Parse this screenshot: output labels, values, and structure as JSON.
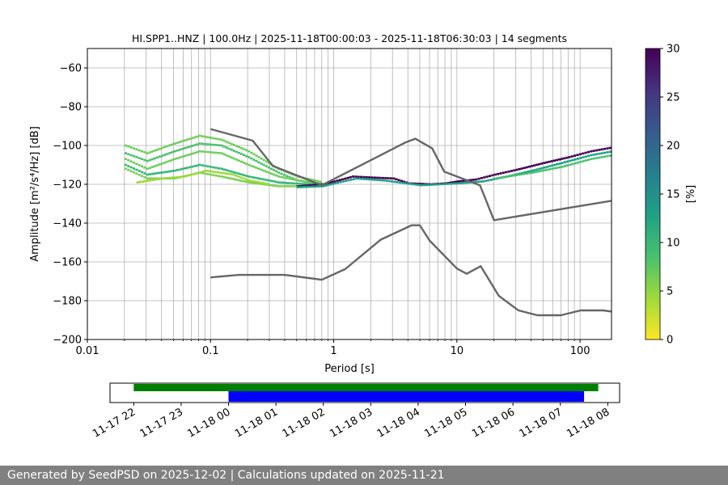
{
  "chart_data": [
    {
      "type": "heatmap",
      "title": "HI.SPP1..HNZ | 100.0Hz | 2025-11-18T00:00:03 - 2025-11-18T06:30:03 | 14 segments",
      "xlabel": "Period [s]",
      "ylabel": "Amplitude [m²/s⁴/Hz] [dB]",
      "x_scale": "log",
      "xlim": [
        0.01,
        180
      ],
      "ylim": [
        -200,
        -50
      ],
      "xticks": [
        {
          "v": 0.01,
          "label": "0.01"
        },
        {
          "v": 0.1,
          "label": "0.1"
        },
        {
          "v": 1,
          "label": "1"
        },
        {
          "v": 10,
          "label": "10"
        },
        {
          "v": 100,
          "label": "100"
        }
      ],
      "yticks": [
        {
          "v": -60,
          "label": "−60"
        },
        {
          "v": -80,
          "label": "−80"
        },
        {
          "v": -100,
          "label": "−100"
        },
        {
          "v": -120,
          "label": "−120"
        },
        {
          "v": -140,
          "label": "−140"
        },
        {
          "v": -160,
          "label": "−160"
        },
        {
          "v": -180,
          "label": "−180"
        },
        {
          "v": -200,
          "label": "−200"
        }
      ],
      "grid": true,
      "colorbar": {
        "label": "[%]",
        "min": 0,
        "max": 30,
        "ticks": [
          {
            "v": 0,
            "label": "0"
          },
          {
            "v": 5,
            "label": "5"
          },
          {
            "v": 10,
            "label": "10"
          },
          {
            "v": 15,
            "label": "15"
          },
          {
            "v": 20,
            "label": "20"
          },
          {
            "v": 25,
            "label": "25"
          },
          {
            "v": 30,
            "label": "30"
          }
        ],
        "colors": [
          "#fde725",
          "#a0da39",
          "#4ac16d",
          "#1fa187",
          "#277f8e",
          "#365c8d",
          "#46327e",
          "#440154"
        ]
      },
      "series": [
        {
          "kind": "NHNM",
          "points": [
            [
              0.1,
              -91.5
            ],
            [
              0.22,
              -97.5
            ],
            [
              0.32,
              -110.5
            ],
            [
              0.8,
              -120.5
            ],
            [
              3.8,
              -98.5
            ],
            [
              4.6,
              -96.5
            ],
            [
              6.3,
              -101.5
            ],
            [
              7.9,
              -113.5
            ],
            [
              15.4,
              -120.5
            ],
            [
              20,
              -138.5
            ],
            [
              180,
              -128.5
            ]
          ]
        },
        {
          "kind": "NLNM",
          "points": [
            [
              0.1,
              -168
            ],
            [
              0.17,
              -166.7
            ],
            [
              0.4,
              -166.7
            ],
            [
              0.8,
              -169.2
            ],
            [
              1.24,
              -163.7
            ],
            [
              2.4,
              -148.6
            ],
            [
              4.3,
              -141.1
            ],
            [
              5.0,
              -141.1
            ],
            [
              6.0,
              -149.0
            ],
            [
              10.0,
              -163.4
            ],
            [
              12.0,
              -166.1
            ],
            [
              15.6,
              -162.2
            ],
            [
              21.9,
              -177.5
            ],
            [
              31.6,
              -185
            ],
            [
              45,
              -187.5
            ],
            [
              70,
              -187.5
            ],
            [
              101,
              -185
            ],
            [
              154,
              -185
            ],
            [
              180,
              -185.6
            ]
          ]
        }
      ],
      "pdf_bands": [
        {
          "color": "#6cce59",
          "points": [
            [
              0.02,
              -100
            ],
            [
              0.03,
              -104
            ],
            [
              0.05,
              -99
            ],
            [
              0.08,
              -95
            ],
            [
              0.12,
              -97
            ],
            [
              0.2,
              -103
            ],
            [
              0.35,
              -112
            ],
            [
              0.5,
              -116
            ],
            [
              0.8,
              -119
            ]
          ]
        },
        {
          "color": "#4ac16d",
          "points": [
            [
              0.02,
              -104
            ],
            [
              0.03,
              -108
            ],
            [
              0.05,
              -103
            ],
            [
              0.08,
              -99
            ],
            [
              0.12,
              -100
            ],
            [
              0.2,
              -106
            ],
            [
              0.35,
              -114
            ],
            [
              0.5,
              -118
            ],
            [
              0.8,
              -120
            ]
          ]
        },
        {
          "color": "#6cce59",
          "points": [
            [
              0.02,
              -107
            ],
            [
              0.03,
              -112
            ],
            [
              0.05,
              -107
            ],
            [
              0.08,
              -103
            ],
            [
              0.12,
              -104
            ],
            [
              0.2,
              -110
            ],
            [
              0.35,
              -116
            ],
            [
              0.6,
              -119
            ],
            [
              0.8,
              -120
            ]
          ]
        },
        {
          "color": "#35b779",
          "points": [
            [
              0.02,
              -110
            ],
            [
              0.03,
              -115
            ],
            [
              0.05,
              -113
            ],
            [
              0.08,
              -110
            ],
            [
              0.12,
              -112
            ],
            [
              0.2,
              -116
            ],
            [
              0.35,
              -119
            ],
            [
              0.6,
              -120
            ],
            [
              0.8,
              -120
            ]
          ]
        },
        {
          "color": "#7ad151",
          "points": [
            [
              0.02,
              -112
            ],
            [
              0.03,
              -117
            ],
            [
              0.05,
              -117
            ],
            [
              0.08,
              -114
            ],
            [
              0.12,
              -116
            ],
            [
              0.2,
              -119
            ],
            [
              0.35,
              -121
            ],
            [
              0.6,
              -121
            ],
            [
              0.8,
              -120
            ]
          ]
        },
        {
          "color": "#9dd93b",
          "points": [
            [
              0.025,
              -119
            ],
            [
              0.04,
              -117
            ],
            [
              0.06,
              -116
            ],
            [
              0.09,
              -113
            ],
            [
              0.15,
              -115
            ],
            [
              0.2,
              -118
            ],
            [
              0.3,
              -120
            ]
          ]
        },
        {
          "color": "#440154",
          "points": [
            [
              0.5,
              -121
            ],
            [
              0.8,
              -120
            ],
            [
              1,
              -118.5
            ],
            [
              1.4,
              -116
            ],
            [
              2,
              -116.5
            ],
            [
              3,
              -117
            ],
            [
              4,
              -119.5
            ],
            [
              6,
              -120
            ],
            [
              8,
              -119.5
            ],
            [
              10,
              -118.5
            ],
            [
              14,
              -117.5
            ],
            [
              20,
              -115
            ],
            [
              30,
              -112.5
            ],
            [
              50,
              -109
            ],
            [
              80,
              -106
            ],
            [
              120,
              -103
            ],
            [
              180,
              -101
            ]
          ]
        },
        {
          "color": "#1fa187",
          "points": [
            [
              0.5,
              -121.5
            ],
            [
              0.8,
              -121
            ],
            [
              1,
              -119.5
            ],
            [
              1.5,
              -117
            ],
            [
              2.5,
              -118
            ],
            [
              5,
              -120.5
            ],
            [
              10,
              -119.5
            ],
            [
              16,
              -118.5
            ],
            [
              25,
              -116
            ],
            [
              40,
              -113
            ],
            [
              70,
              -109
            ],
            [
              120,
              -105
            ],
            [
              180,
              -103
            ]
          ]
        },
        {
          "color": "#4ac16d",
          "points": [
            [
              20,
              -117
            ],
            [
              40,
              -114
            ],
            [
              70,
              -111
            ],
            [
              120,
              -107
            ],
            [
              180,
              -105
            ]
          ]
        }
      ]
    },
    {
      "type": "timeline",
      "ticks": [
        "11-17 22",
        "11-17 23",
        "11-18 00",
        "11-18 01",
        "11-18 02",
        "11-18 03",
        "11-18 04",
        "11-18 05",
        "11-18 06",
        "11-18 07",
        "11-18 08"
      ],
      "range_hours": [
        21.5,
        32.25
      ],
      "bars": [
        {
          "color": "#008000",
          "start_h": 22.0,
          "end_h": 31.8
        },
        {
          "color": "#0000ff",
          "start_h": 24.0,
          "end_h": 31.5
        }
      ]
    }
  ],
  "footer": {
    "text": "Generated by SeedPSD on 2025-12-02 | Calculations updated on 2025-11-21"
  }
}
